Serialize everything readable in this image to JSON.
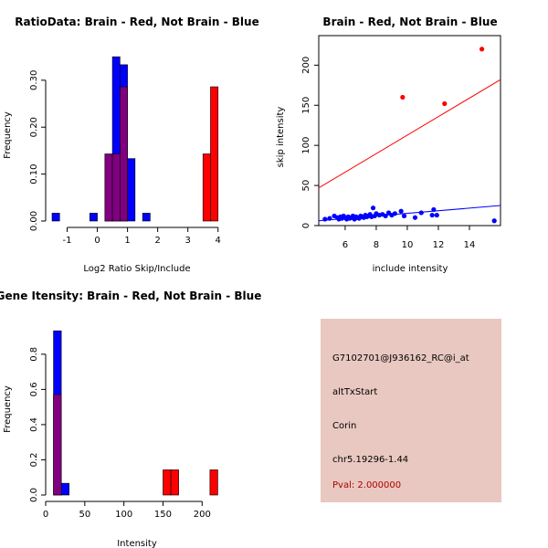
{
  "colors": {
    "red": "#ff0000",
    "blue": "#0000ff",
    "overlap": "#800080",
    "panel": "#e8c8c0",
    "pval": "#b00000"
  },
  "chart_data": [
    {
      "type": "bar",
      "title": "RatioData: Brain - Red, Not Brain - Blue",
      "xlabel": "Log2 Ratio Skip/Include",
      "ylabel": "Frequency",
      "xlim": [
        -1.5,
        4.25
      ],
      "ylim": [
        0,
        0.36
      ],
      "xticks": [
        -1,
        0,
        1,
        2,
        3,
        4
      ],
      "yticks": [
        0.0,
        0.1,
        0.2,
        0.3
      ],
      "ytick_labels": [
        "0.00",
        "0.10",
        "0.20",
        "0.30"
      ],
      "bin_width": 0.25,
      "series": [
        {
          "name": "Not Brain",
          "color": "blue",
          "bins": [
            [
              -1.5,
              0.0167
            ],
            [
              -0.25,
              0.0167
            ],
            [
              0.25,
              0.133
            ],
            [
              0.5,
              0.35
            ],
            [
              0.75,
              0.333
            ],
            [
              1.0,
              0.133
            ],
            [
              1.5,
              0.0167
            ]
          ]
        },
        {
          "name": "Brain",
          "color": "red",
          "bins": [
            [
              0.25,
              0.143
            ],
            [
              0.5,
              0.143
            ],
            [
              0.75,
              0.286
            ],
            [
              3.5,
              0.143
            ],
            [
              3.75,
              0.286
            ]
          ]
        }
      ]
    },
    {
      "type": "scatter",
      "title": "Brain - Red, Not Brain - Blue",
      "xlabel": "include intensity",
      "ylabel": "skip intensity",
      "xlim": [
        4.3,
        16.0
      ],
      "ylim": [
        0,
        230
      ],
      "xticks": [
        6,
        8,
        10,
        12,
        14
      ],
      "yticks": [
        0,
        50,
        100,
        150,
        200
      ],
      "series": [
        {
          "name": "Brain",
          "color": "red",
          "points": [
            [
              9.7,
              160
            ],
            [
              12.4,
              152
            ],
            [
              14.8,
              220
            ]
          ],
          "fit": [
            [
              4.3,
              47
            ],
            [
              16.0,
              182
            ]
          ]
        },
        {
          "name": "Not Brain",
          "color": "blue",
          "points": [
            [
              4.7,
              8
            ],
            [
              5.0,
              9
            ],
            [
              5.3,
              12
            ],
            [
              5.5,
              10
            ],
            [
              5.6,
              8
            ],
            [
              5.7,
              11
            ],
            [
              5.8,
              9
            ],
            [
              5.9,
              12
            ],
            [
              6.0,
              10
            ],
            [
              6.1,
              8
            ],
            [
              6.2,
              11
            ],
            [
              6.3,
              9
            ],
            [
              6.4,
              10
            ],
            [
              6.5,
              12
            ],
            [
              6.6,
              8
            ],
            [
              6.7,
              11
            ],
            [
              6.8,
              10
            ],
            [
              6.9,
              9
            ],
            [
              7.0,
              12
            ],
            [
              7.1,
              11
            ],
            [
              7.2,
              10
            ],
            [
              7.3,
              13
            ],
            [
              7.4,
              11
            ],
            [
              7.5,
              12
            ],
            [
              7.6,
              14
            ],
            [
              7.7,
              11
            ],
            [
              7.8,
              22
            ],
            [
              7.9,
              12
            ],
            [
              8.0,
              15
            ],
            [
              8.2,
              13
            ],
            [
              8.4,
              14
            ],
            [
              8.6,
              12
            ],
            [
              8.8,
              16
            ],
            [
              9.0,
              13
            ],
            [
              9.2,
              15
            ],
            [
              9.6,
              18
            ],
            [
              9.8,
              12
            ],
            [
              10.5,
              10
            ],
            [
              10.9,
              16
            ],
            [
              11.6,
              13
            ],
            [
              11.7,
              20
            ],
            [
              11.9,
              13
            ],
            [
              15.6,
              6
            ]
          ],
          "fit": [
            [
              4.3,
              6
            ],
            [
              16.0,
              25
            ]
          ]
        }
      ]
    },
    {
      "type": "bar",
      "title": "Gene Itensity: Brain - Red, Not Brain - Blue",
      "xlabel": "Intensity",
      "ylabel": "Frequency",
      "xlim": [
        0,
        230
      ],
      "ylim": [
        0,
        0.96
      ],
      "xticks": [
        0,
        50,
        100,
        150,
        200
      ],
      "yticks": [
        0.0,
        0.2,
        0.4,
        0.6,
        0.8
      ],
      "ytick_labels": [
        "0.0",
        "0.2",
        "0.4",
        "0.6",
        "0.8"
      ],
      "bin_width": 10,
      "series": [
        {
          "name": "Not Brain",
          "color": "blue",
          "bins": [
            [
              10,
              0.933
            ],
            [
              20,
              0.0667
            ]
          ]
        },
        {
          "name": "Brain",
          "color": "red",
          "bins": [
            [
              10,
              0.571
            ],
            [
              150,
              0.143
            ],
            [
              160,
              0.143
            ],
            [
              210,
              0.143
            ]
          ]
        }
      ]
    }
  ],
  "info": {
    "probe": "G7102701@J936162_RC@i_at",
    "event": "altTxStart",
    "gene": "Corin",
    "location": "chr5.19296-1.44",
    "pval": "Pval: 2.000000"
  }
}
